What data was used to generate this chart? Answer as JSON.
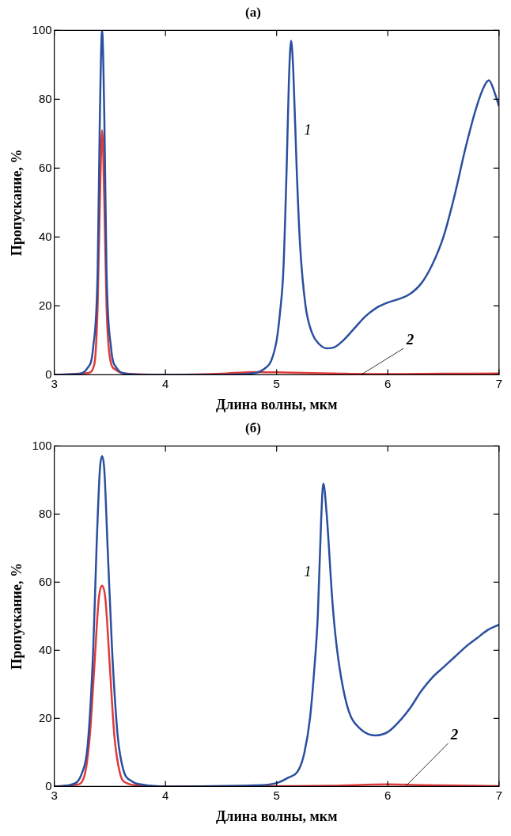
{
  "chart_data": [
    {
      "type": "line",
      "title": "(а)",
      "xlabel": "Длина волны, мкм",
      "ylabel": "Пропускание, %",
      "xlim": [
        3,
        7
      ],
      "ylim": [
        0,
        100
      ],
      "xticks": [
        3,
        4,
        5,
        6,
        7
      ],
      "yticks": [
        0,
        20,
        40,
        60,
        80,
        100
      ],
      "grid": false,
      "legend": false,
      "marker": "none",
      "line_style": "solid",
      "series": [
        {
          "name": "1",
          "color": "#2a4f9e",
          "x": [
            3.0,
            3.2,
            3.3,
            3.35,
            3.39,
            3.41,
            3.43,
            3.45,
            3.47,
            3.51,
            3.56,
            3.65,
            3.8,
            4.5,
            4.8,
            4.9,
            4.95,
            5.0,
            5.03,
            5.06,
            5.09,
            5.11,
            5.13,
            5.15,
            5.18,
            5.21,
            5.26,
            5.32,
            5.38,
            5.45,
            5.52,
            5.6,
            5.7,
            5.8,
            5.9,
            6.0,
            6.1,
            6.2,
            6.3,
            6.4,
            6.5,
            6.6,
            6.7,
            6.8,
            6.87,
            6.91,
            6.96,
            7.0
          ],
          "values": [
            0,
            0.2,
            2,
            8,
            30,
            75,
            100,
            75,
            30,
            8,
            2,
            0.3,
            0,
            0,
            0.5,
            2,
            4,
            10,
            18,
            30,
            60,
            85,
            97,
            88,
            60,
            38,
            20,
            12,
            9,
            7.7,
            8,
            10,
            13.5,
            17,
            19.5,
            21,
            22,
            23.5,
            26.5,
            32,
            40,
            52,
            66,
            78,
            84,
            85.5,
            82,
            78
          ]
        },
        {
          "name": "2",
          "color": "#e03a3a",
          "x": [
            3.0,
            3.3,
            3.36,
            3.39,
            3.41,
            3.43,
            3.45,
            3.47,
            3.5,
            3.55,
            3.65,
            4.0,
            4.5,
            4.8,
            5.0,
            5.5,
            6.0,
            6.5,
            7.0
          ],
          "values": [
            0,
            0.5,
            3,
            20,
            50,
            71,
            50,
            20,
            5,
            1.5,
            0.3,
            0,
            0.3,
            0.8,
            0.7,
            0.4,
            0.2,
            0.3,
            0.4
          ]
        }
      ]
    },
    {
      "type": "line",
      "title": "(б)",
      "xlabel": "Длина волны, мкм",
      "ylabel": "Пропускание, %",
      "xlim": [
        3,
        7
      ],
      "ylim": [
        0,
        100
      ],
      "xticks": [
        3,
        4,
        5,
        6,
        7
      ],
      "yticks": [
        0,
        20,
        40,
        60,
        80,
        100
      ],
      "grid": false,
      "legend": false,
      "marker": "none",
      "line_style": "solid",
      "series": [
        {
          "name": "1",
          "color": "#2a4f9e",
          "x": [
            3.0,
            3.15,
            3.25,
            3.3,
            3.35,
            3.38,
            3.41,
            3.43,
            3.45,
            3.48,
            3.52,
            3.57,
            3.62,
            3.7,
            3.8,
            4.0,
            4.8,
            5.0,
            5.1,
            5.2,
            5.25,
            5.3,
            5.34,
            5.37,
            5.4,
            5.42,
            5.45,
            5.5,
            5.53,
            5.58,
            5.65,
            5.75,
            5.89,
            6.0,
            6.1,
            6.2,
            6.3,
            6.4,
            6.5,
            6.6,
            6.7,
            6.8,
            6.9,
            7.0
          ],
          "values": [
            0,
            0.5,
            4,
            12,
            40,
            70,
            93,
            97,
            93,
            70,
            40,
            15,
            5,
            1.5,
            0.5,
            0,
            0.3,
            1,
            2.5,
            5,
            10,
            20,
            35,
            50,
            78,
            89,
            80,
            55,
            44,
            32,
            22,
            17,
            15,
            16,
            19,
            23,
            28,
            32,
            35,
            38,
            41,
            43.5,
            46,
            47.5
          ]
        },
        {
          "name": "2",
          "color": "#e03a3a",
          "x": [
            3.0,
            3.2,
            3.27,
            3.32,
            3.36,
            3.4,
            3.43,
            3.46,
            3.5,
            3.54,
            3.59,
            3.65,
            3.8,
            4.0,
            5.0,
            5.5,
            6.0,
            6.3,
            7.0
          ],
          "values": [
            0,
            0.5,
            3,
            15,
            35,
            55,
            59,
            55,
            35,
            15,
            4,
            1,
            0.2,
            0,
            0.1,
            0.2,
            0.6,
            0.4,
            0.1
          ]
        }
      ]
    }
  ]
}
